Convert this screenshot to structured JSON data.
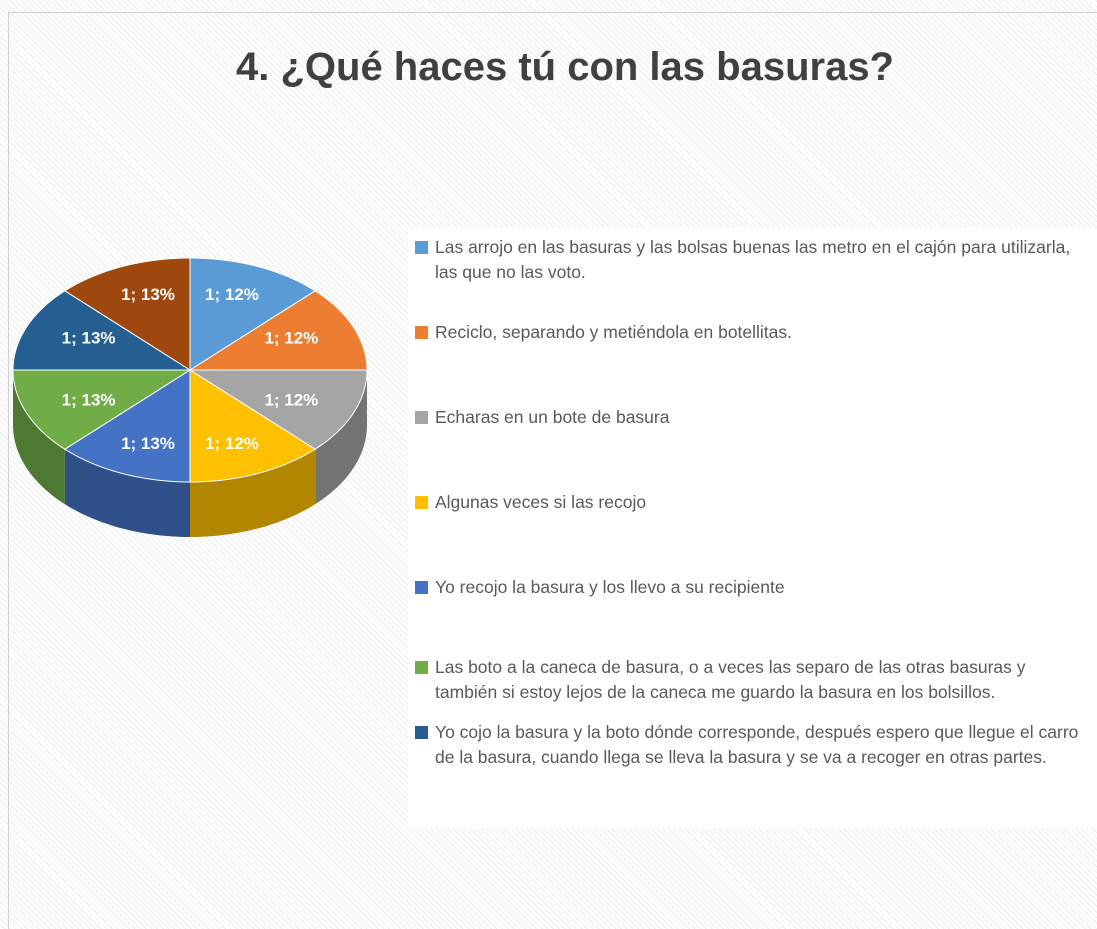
{
  "chart_data": {
    "type": "pie",
    "title": "4. ¿Qué haces tú con las basuras?",
    "categories": [
      "Las arrojo en las basuras y las bolsas buenas las metro en el cajón para utilizarla, las que no las voto.",
      "Reciclo, separando y metiéndola en botellitas.",
      "Echaras en un bote de basura",
      "Algunas veces si las recojo",
      "Yo recojo la basura y los llevo a su recipiente",
      "Las boto a la caneca de basura, o a veces las separo de las otras basuras y también si estoy lejos de la caneca me guardo la basura en los bolsillos.",
      "Yo cojo la basura y la boto dónde corresponde, después espero que llegue el carro de la basura, cuando llega se lleva la basura y se va a recoger en otras partes.",
      null
    ],
    "values": [
      1,
      1,
      1,
      1,
      1,
      1,
      1,
      1
    ],
    "value_labels": [
      "1; 12%",
      "1; 12%",
      "1; 12%",
      "1; 12%",
      "1; 13%",
      "1; 13%",
      "1; 13%",
      "1; 13%"
    ],
    "colors": [
      "#5b9bd5",
      "#ed7d31",
      "#a5a5a5",
      "#ffc000",
      "#4472c4",
      "#70ad47",
      "#255e91",
      "#9e480e"
    ]
  }
}
